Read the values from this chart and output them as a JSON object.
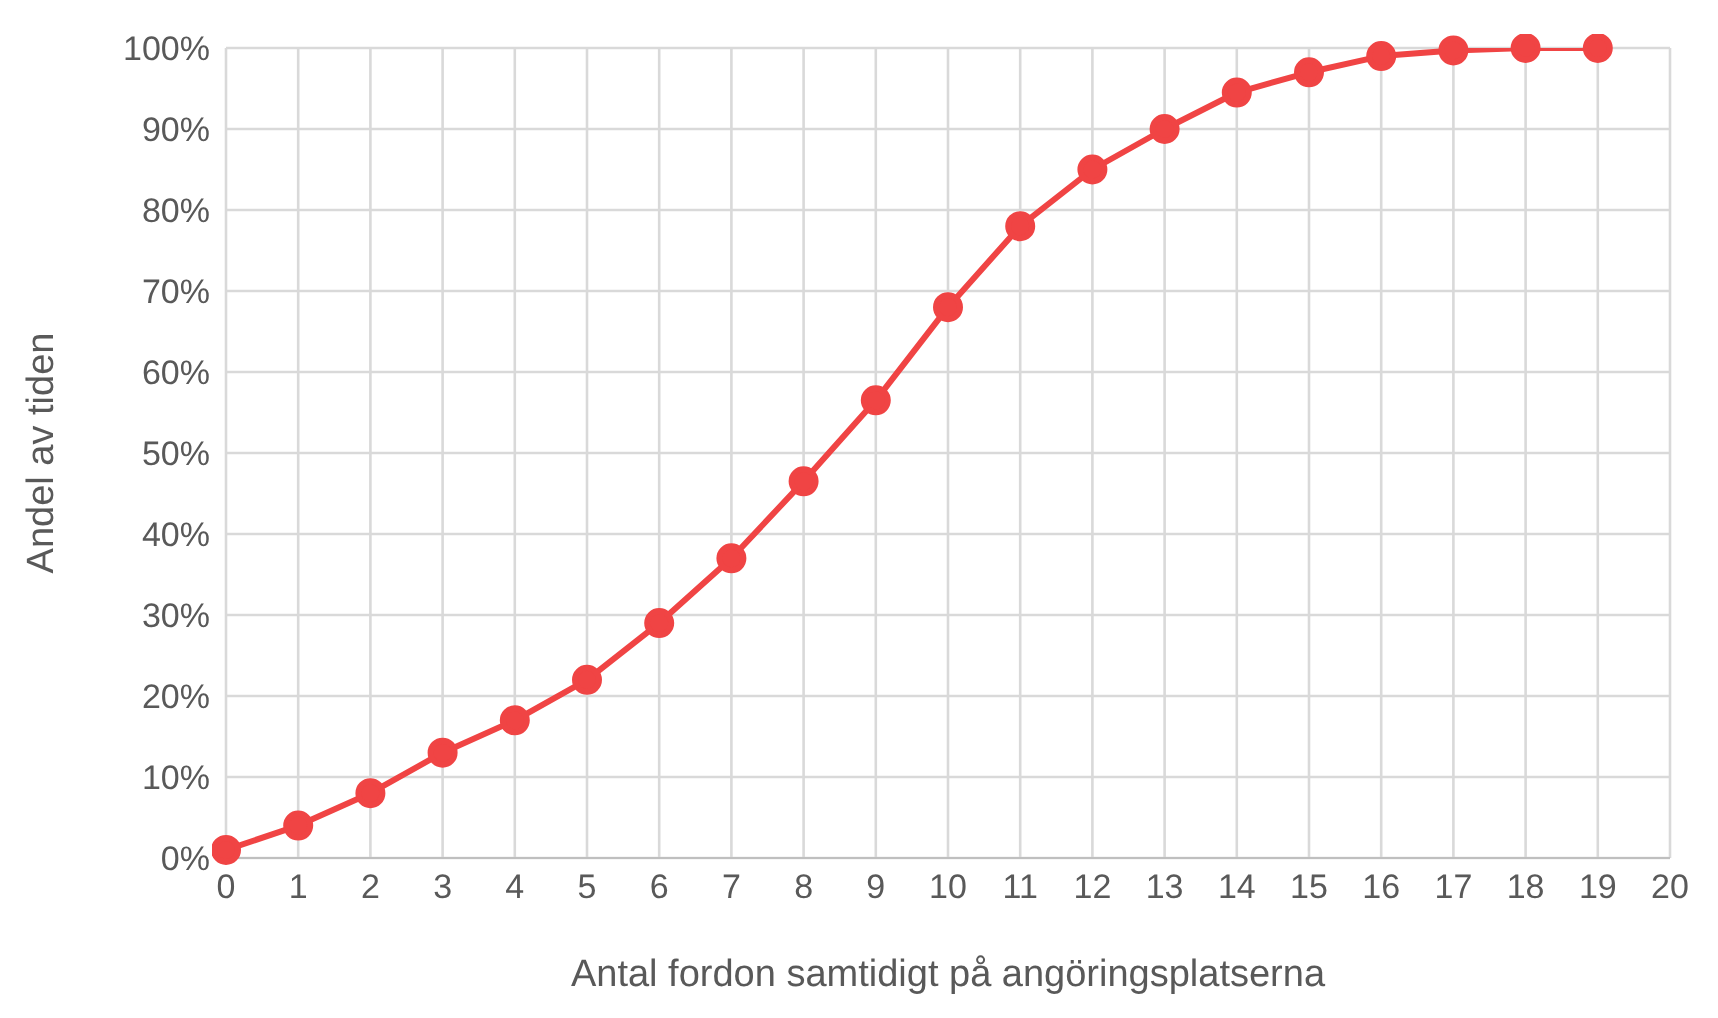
{
  "chart_data": {
    "type": "line",
    "xlabel": "Antal fordon samtidigt på angöringsplatserna",
    "ylabel": "Andel av tiden",
    "x": [
      0,
      1,
      2,
      3,
      4,
      5,
      6,
      7,
      8,
      9,
      10,
      11,
      12,
      13,
      14,
      15,
      16,
      17,
      18,
      19
    ],
    "series": [
      {
        "color": "#f04444",
        "values": [
          1,
          4,
          8,
          13,
          17,
          22,
          29,
          37,
          46.5,
          56.5,
          68,
          78,
          85,
          90,
          94.5,
          97,
          99,
          99.7,
          100,
          100
        ]
      }
    ],
    "xlim": [
      0,
      20
    ],
    "xticks": [
      0,
      1,
      2,
      3,
      4,
      5,
      6,
      7,
      8,
      9,
      10,
      11,
      12,
      13,
      14,
      15,
      16,
      17,
      18,
      19,
      20
    ],
    "ylim": [
      0,
      100
    ],
    "yticks": [
      {
        "value": 0,
        "label": "0%"
      },
      {
        "value": 10,
        "label": "10%"
      },
      {
        "value": 20,
        "label": "20%"
      },
      {
        "value": 30,
        "label": "30%"
      },
      {
        "value": 40,
        "label": "40%"
      },
      {
        "value": 50,
        "label": "50%"
      },
      {
        "value": 60,
        "label": "60%"
      },
      {
        "value": 70,
        "label": "70%"
      },
      {
        "value": 80,
        "label": "80%"
      },
      {
        "value": 90,
        "label": "90%"
      },
      {
        "value": 100,
        "label": "100%"
      }
    ],
    "grid": true,
    "marker": "circle",
    "line_style": "solid",
    "legend": false
  }
}
